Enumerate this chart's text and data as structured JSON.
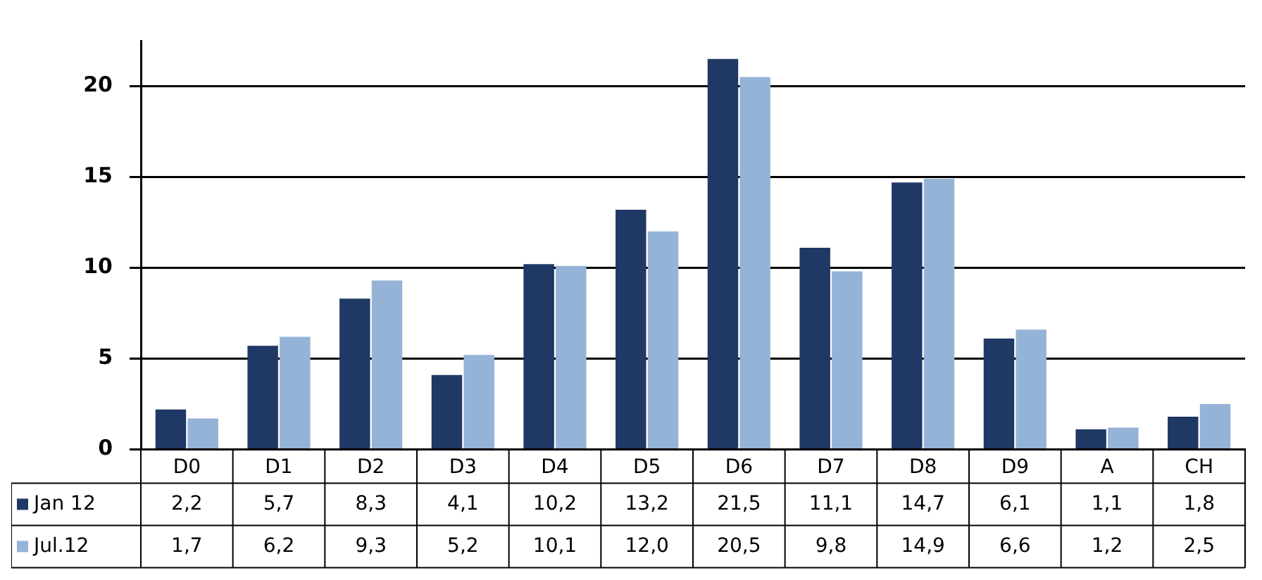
{
  "chart_data": {
    "type": "bar",
    "categories": [
      "D0",
      "D1",
      "D2",
      "D3",
      "D4",
      "D5",
      "D6",
      "D7",
      "D8",
      "D9",
      "A",
      "CH"
    ],
    "series": [
      {
        "name": "Jan 12",
        "color": "#1f3864",
        "values": [
          2.2,
          5.7,
          8.3,
          4.1,
          10.2,
          13.2,
          21.5,
          11.1,
          14.7,
          6.1,
          1.1,
          1.8
        ],
        "value_labels": [
          "2,2",
          "5,7",
          "8,3",
          "4,1",
          "10,2",
          "13,2",
          "21,5",
          "11,1",
          "14,7",
          "6,1",
          "1,1",
          "1,8"
        ]
      },
      {
        "name": "Jul.12",
        "color": "#95b3d7",
        "values": [
          1.7,
          6.2,
          9.3,
          5.2,
          10.1,
          12.0,
          20.5,
          9.8,
          14.9,
          6.6,
          1.2,
          2.5
        ],
        "value_labels": [
          "1,7",
          "6,2",
          "9,3",
          "5,2",
          "10,1",
          "12,0",
          "20,5",
          "9,8",
          "14,9",
          "6,6",
          "1,2",
          "2,5"
        ]
      }
    ],
    "ylim": [
      0,
      22.5
    ],
    "yticks": [
      0,
      5,
      10,
      15,
      20
    ],
    "grid": "y",
    "legend": "bottom left"
  }
}
